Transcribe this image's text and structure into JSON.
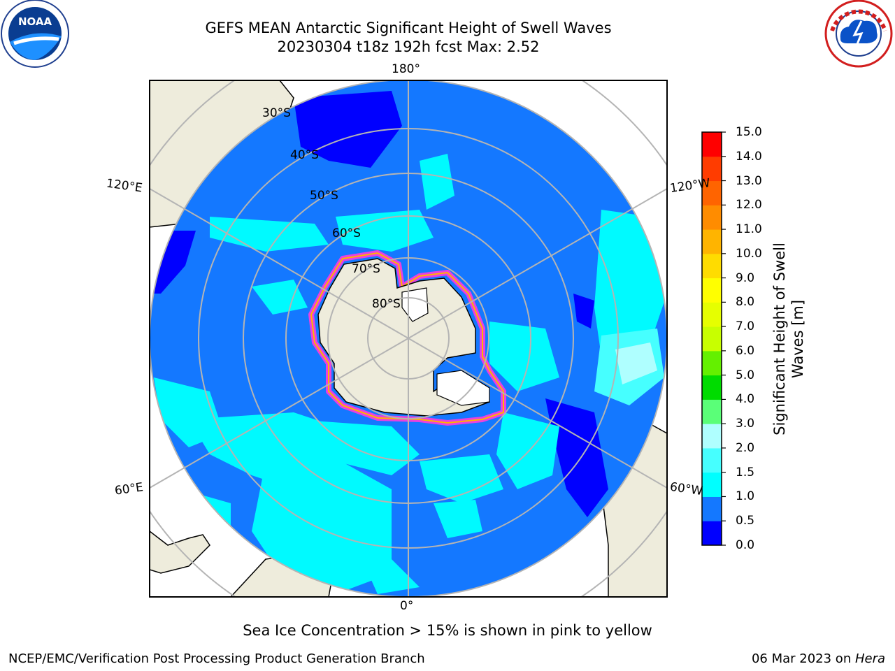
{
  "header": {
    "title_line1": "GEFS MEAN Antarctic Significant Height of Swell Waves",
    "title_line2": "20230304 t18z 192h fcst   Max: 2.52"
  },
  "map": {
    "projection": "south-polar-stereographic",
    "lon_labels": {
      "top": "180°",
      "left_upper": "120°E",
      "right_upper": "120°W",
      "left_lower": "60°E",
      "right_lower": "60°W",
      "bottom": "0°"
    },
    "lat_labels": [
      "30°S",
      "40°S",
      "50°S",
      "60°S",
      "70°S",
      "80°S"
    ],
    "colors": {
      "land": "#eeecdc",
      "grid": "#b4b4b4",
      "ocean_0_5": "#1478ff",
      "ocean_1_0": "#00faff",
      "ocean_low": "#0000ff",
      "ice_pink": "#ff3cdc"
    }
  },
  "colorbar": {
    "ticks": [
      "15.0",
      "14.0",
      "13.0",
      "12.0",
      "11.0",
      "10.0",
      "9.0",
      "8.0",
      "7.0",
      "6.0",
      "5.0",
      "4.0",
      "3.0",
      "2.0",
      "1.5",
      "1.0",
      "0.5",
      "0.0"
    ],
    "colors": [
      "#0000ff",
      "#1478ff",
      "#00ffff",
      "#46ffff",
      "#afffff",
      "#5aff78",
      "#00dc00",
      "#64f000",
      "#c8ff00",
      "#e6ff00",
      "#ffff00",
      "#ffdc00",
      "#ffb400",
      "#ff8c00",
      "#ff6400",
      "#ff3c00",
      "#ff0000"
    ],
    "label": "Significant Height of Swell Waves [m]"
  },
  "footnote": "Sea Ice Concentration > 15% is shown in pink to yellow",
  "credits": {
    "left": "NCEP/EMC/Verification Post Processing Product Generation Branch",
    "right_date": "06 Mar 2023 on ",
    "right_machine": "Hera"
  },
  "logos": {
    "left_text": "NOAA",
    "right_text": "NATIONAL WEATHER SERVICE"
  }
}
